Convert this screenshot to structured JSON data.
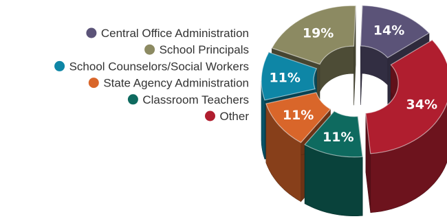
{
  "chart_data": {
    "type": "pie",
    "style": "3d-donut, exploded slices",
    "title": "",
    "legend_position": "left",
    "series": [
      {
        "name": "Central Office Administration",
        "value": 14,
        "label": "14%",
        "color": "#5b5378"
      },
      {
        "name": "Other",
        "value": 34,
        "label": "34%",
        "color": "#b01e2f"
      },
      {
        "name": "Classroom Teachers",
        "value": 11,
        "label": "11%",
        "color": "#0e6a5f"
      },
      {
        "name": "State Agency Administration",
        "value": 11,
        "label": "11%",
        "color": "#d9662a"
      },
      {
        "name": "School Counselors/Social Workers",
        "value": 11,
        "label": "11%",
        "color": "#0e86a6"
      },
      {
        "name": "School Principals",
        "value": 19,
        "label": "19%",
        "color": "#8c8a62"
      }
    ],
    "legend_order": [
      "Central Office Administration",
      "School Principals",
      "School Counselors/Social Workers",
      "State Agency Administration",
      "Classroom Teachers",
      "Other"
    ]
  }
}
